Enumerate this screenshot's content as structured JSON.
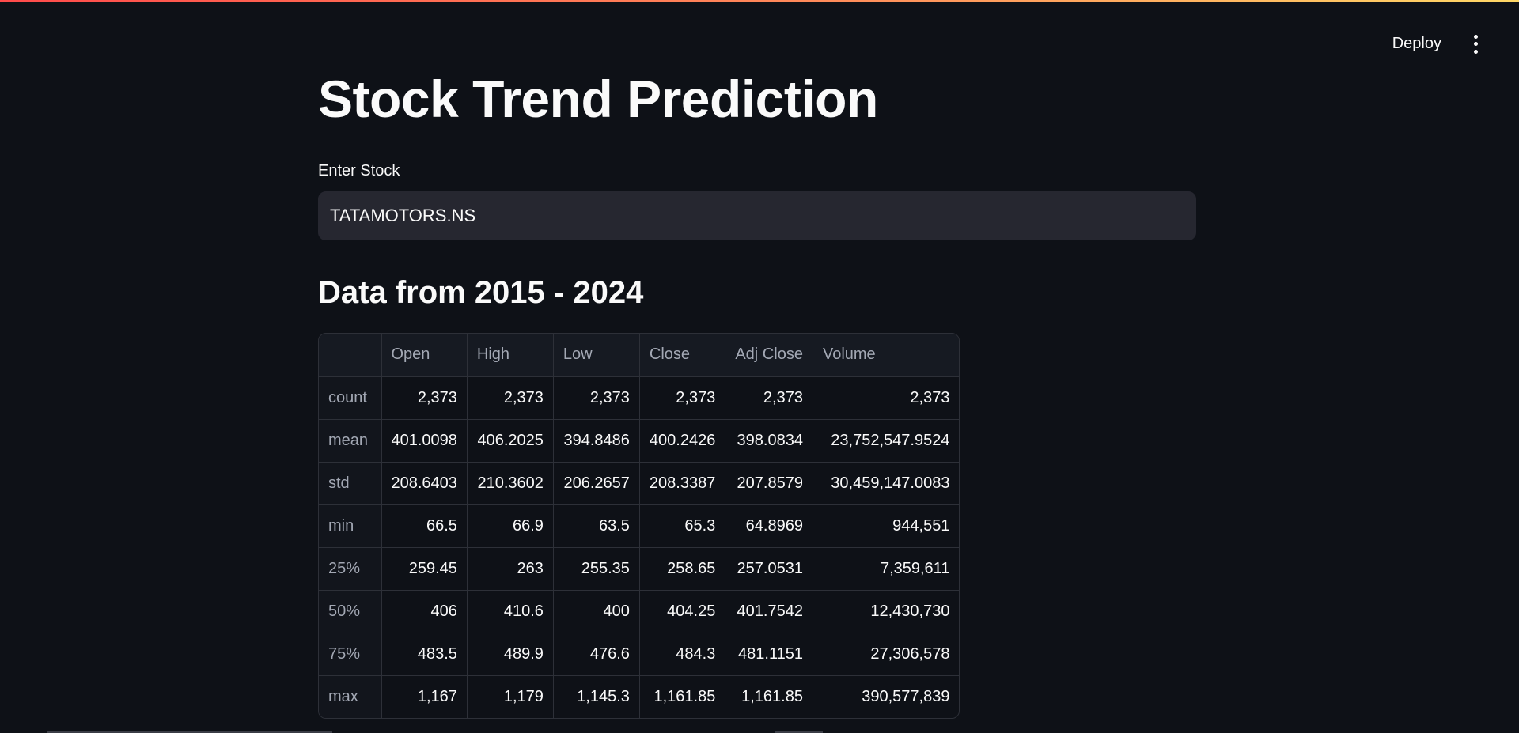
{
  "header": {
    "deploy_label": "Deploy",
    "menu_icon": "vertical-ellipsis-icon"
  },
  "main": {
    "title": "Stock Trend Prediction",
    "input": {
      "label": "Enter Stock",
      "value": "TATAMOTORS.NS"
    },
    "section_heading": "Data from 2015 - 2024",
    "table": {
      "columns": [
        "",
        "Open",
        "High",
        "Low",
        "Close",
        "Adj Close",
        "Volume"
      ],
      "rows": [
        {
          "label": "count",
          "values": [
            "2,373",
            "2,373",
            "2,373",
            "2,373",
            "2,373",
            "2,373"
          ]
        },
        {
          "label": "mean",
          "values": [
            "401.0098",
            "406.2025",
            "394.8486",
            "400.2426",
            "398.0834",
            "23,752,547.9524"
          ]
        },
        {
          "label": "std",
          "values": [
            "208.6403",
            "210.3602",
            "206.2657",
            "208.3387",
            "207.8579",
            "30,459,147.0083"
          ]
        },
        {
          "label": "min",
          "values": [
            "66.5",
            "66.9",
            "63.5",
            "65.3",
            "64.8969",
            "944,551"
          ]
        },
        {
          "label": "25%",
          "values": [
            "259.45",
            "263",
            "255.35",
            "258.65",
            "257.0531",
            "7,359,611"
          ]
        },
        {
          "label": "50%",
          "values": [
            "406",
            "410.6",
            "400",
            "404.25",
            "401.7542",
            "12,430,730"
          ]
        },
        {
          "label": "75%",
          "values": [
            "483.5",
            "489.9",
            "476.6",
            "484.3",
            "481.1151",
            "27,306,578"
          ]
        },
        {
          "label": "max",
          "values": [
            "1,167",
            "1,179",
            "1,145.3",
            "1,161.85",
            "1,161.85",
            "390,577,839"
          ]
        }
      ]
    }
  }
}
